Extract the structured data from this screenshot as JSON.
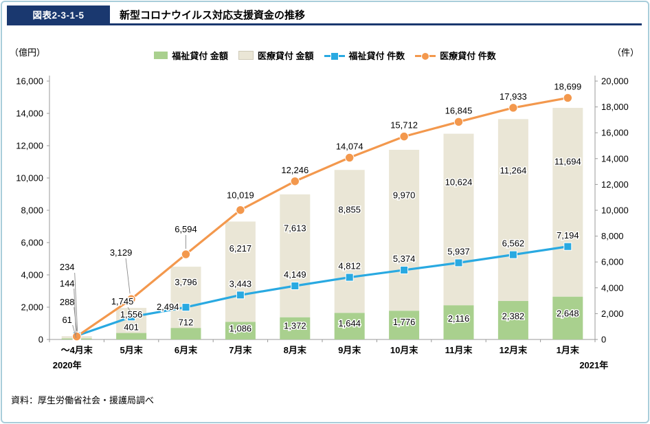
{
  "header": {
    "figure_label": "図表2-3-1-5",
    "title": "新型コロナウイルス対応支援資金の推移"
  },
  "footer": {
    "source": "資料：厚生労働省社会・援護局調べ"
  },
  "chart_data": {
    "type": "combo-stacked-bar-line",
    "title": "新型コロナウイルス対応支援資金の推移",
    "categories": [
      "～4月末",
      "5月末",
      "6月末",
      "7月末",
      "8月末",
      "9月末",
      "10月末",
      "11月末",
      "12月末",
      "1月末"
    ],
    "year_labels": [
      {
        "category_index": 0,
        "text": "2020年"
      },
      {
        "category_index": 9,
        "text": "2021年"
      }
    ],
    "left_axis": {
      "unit": "（億円）",
      "min": 0,
      "max": 16000,
      "step": 2000,
      "tick_labels": [
        "0",
        "2,000",
        "4,000",
        "6,000",
        "8,000",
        "10,000",
        "12,000",
        "14,000",
        "16,000"
      ]
    },
    "right_axis": {
      "unit": "（件）",
      "min": 0,
      "max": 20000,
      "step": 2000,
      "tick_labels": [
        "0",
        "2,000",
        "4,000",
        "6,000",
        "8,000",
        "10,000",
        "12,000",
        "14,000",
        "16,000",
        "18,000",
        "20,000"
      ]
    },
    "series": [
      {
        "name": "福祉貸付 金額",
        "type": "bar",
        "stack": "amount",
        "axis": "left",
        "color": "#a9d08e",
        "values": [
          61,
          401,
          712,
          1086,
          1372,
          1644,
          1776,
          2116,
          2382,
          2648
        ]
      },
      {
        "name": "医療貸付 金額",
        "type": "bar",
        "stack": "amount",
        "axis": "left",
        "color": "#eae6d6",
        "swatch_border": "#cfcab8",
        "values": [
          144,
          1556,
          3796,
          6217,
          7613,
          8855,
          9970,
          10624,
          11264,
          11694
        ]
      },
      {
        "name": "福祉貸付 件数",
        "type": "line",
        "axis": "right",
        "marker": "square",
        "color": "#29a9e1",
        "values": [
          288,
          1745,
          2494,
          3443,
          4149,
          4812,
          5374,
          5937,
          6562,
          7194
        ]
      },
      {
        "name": "医療貸付 件数",
        "type": "line",
        "axis": "right",
        "marker": "circle",
        "color": "#f3984d",
        "values": [
          234,
          3129,
          6594,
          10019,
          12246,
          14074,
          15712,
          16845,
          17933,
          18699
        ]
      }
    ],
    "legend_position": "top",
    "grid": false,
    "colors": {
      "frame": "#a8cdda",
      "navy": "#1a386f",
      "axis_line": "#999999",
      "leader_line": "#8a8a8a"
    }
  }
}
